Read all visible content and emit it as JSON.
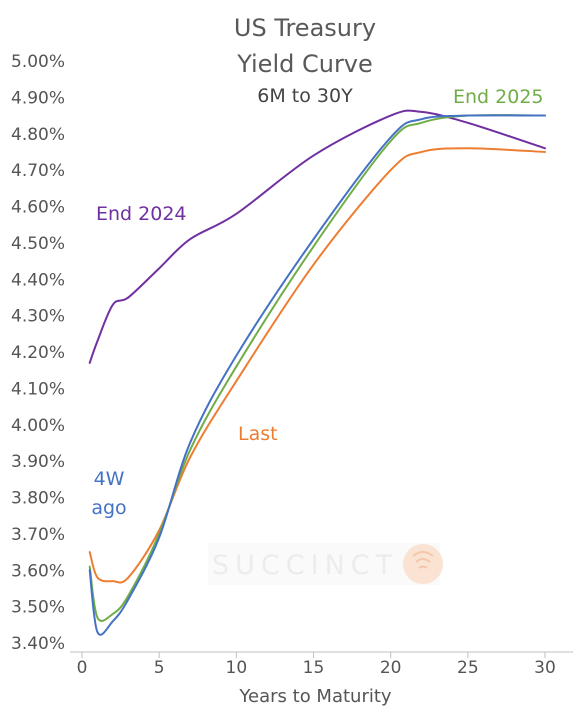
{
  "chart_data": {
    "type": "line",
    "title": "US Treasury\nYield Curve",
    "subtitle": "6M to 30Y",
    "xlabel": "Years to Maturity",
    "ylabel": "",
    "xlim": [
      0,
      30
    ],
    "ylim": [
      3.4,
      5.0
    ],
    "x_ticks": [
      0,
      5,
      10,
      15,
      20,
      25,
      30
    ],
    "y_ticks": [
      3.4,
      3.5,
      3.6,
      3.7,
      3.8,
      3.9,
      4.0,
      4.1,
      4.2,
      4.3,
      4.4,
      4.5,
      4.6,
      4.7,
      4.8,
      4.9,
      5.0
    ],
    "y_tick_format": "percent_2dp",
    "grid": false,
    "legend": "inline labels",
    "watermark": "SUCCINCT",
    "series": [
      {
        "name": "End 2024",
        "color": "#7030a0",
        "points": [
          [
            0.5,
            4.17
          ],
          [
            1,
            4.23
          ],
          [
            2,
            4.33
          ],
          [
            3,
            4.35
          ],
          [
            5,
            4.43
          ],
          [
            7,
            4.51
          ],
          [
            10,
            4.58
          ],
          [
            15,
            4.74
          ],
          [
            20,
            4.85
          ],
          [
            22,
            4.86
          ],
          [
            25,
            4.83
          ],
          [
            30,
            4.76
          ]
        ]
      },
      {
        "name": "End 2025",
        "color": "#70ad47",
        "points": [
          [
            0.5,
            3.61
          ],
          [
            1,
            3.47
          ],
          [
            2,
            3.48
          ],
          [
            3,
            3.53
          ],
          [
            5,
            3.7
          ],
          [
            7,
            3.93
          ],
          [
            10,
            4.16
          ],
          [
            15,
            4.49
          ],
          [
            20,
            4.78
          ],
          [
            22,
            4.83
          ],
          [
            25,
            4.85
          ],
          [
            30,
            4.85
          ]
        ]
      },
      {
        "name": "4W\nago",
        "color": "#4472c4",
        "points": [
          [
            0.5,
            3.6
          ],
          [
            1,
            3.43
          ],
          [
            2,
            3.46
          ],
          [
            3,
            3.52
          ],
          [
            5,
            3.69
          ],
          [
            7,
            3.95
          ],
          [
            10,
            4.19
          ],
          [
            15,
            4.51
          ],
          [
            20,
            4.79
          ],
          [
            22,
            4.84
          ],
          [
            25,
            4.85
          ],
          [
            30,
            4.85
          ]
        ]
      },
      {
        "name": "Last",
        "color": "#ed7d31",
        "points": [
          [
            0.5,
            3.65
          ],
          [
            1,
            3.58
          ],
          [
            2,
            3.57
          ],
          [
            3,
            3.58
          ],
          [
            5,
            3.71
          ],
          [
            7,
            3.91
          ],
          [
            10,
            4.12
          ],
          [
            15,
            4.44
          ],
          [
            20,
            4.7
          ],
          [
            22,
            4.75
          ],
          [
            25,
            4.76
          ],
          [
            30,
            4.75
          ]
        ]
      }
    ]
  }
}
